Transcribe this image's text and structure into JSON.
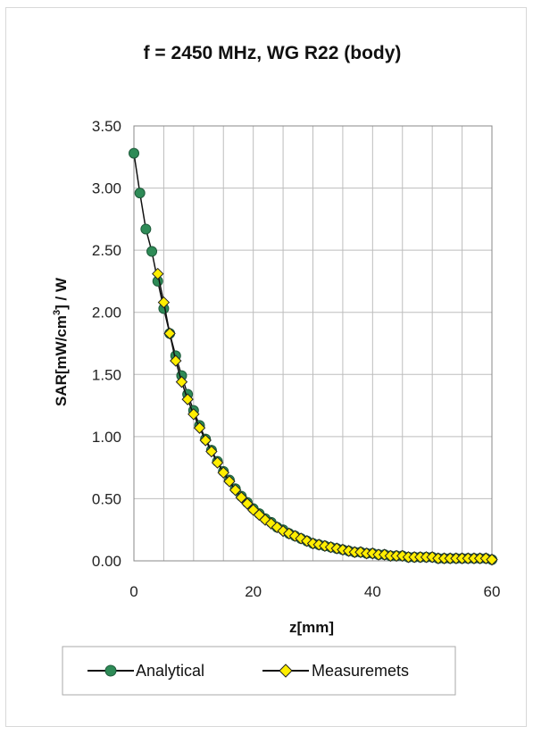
{
  "chart_data": {
    "type": "line",
    "title": "f = 2450 MHz, WG R22 (body)",
    "xlabel": "z[mm]",
    "ylabel_parts": [
      "SAR[mW/cm",
      "3",
      "] / W"
    ],
    "xlim": [
      0,
      60
    ],
    "ylim": [
      0,
      3.5
    ],
    "x_ticks": [
      0,
      20,
      40,
      60
    ],
    "y_ticks": [
      "0.00",
      "0.50",
      "1.00",
      "1.50",
      "2.00",
      "2.50",
      "3.00",
      "3.50"
    ],
    "grid": true,
    "legend_position": "bottom",
    "series": [
      {
        "name": "Analytical",
        "marker": "circle",
        "color": "#2e8b57",
        "x": [
          0,
          1,
          2,
          3,
          4,
          5,
          6,
          7,
          8,
          9,
          10,
          11,
          12,
          13,
          14,
          15,
          16,
          17,
          18,
          19,
          20,
          21,
          22,
          23,
          24,
          25,
          26,
          27,
          28,
          29,
          30,
          31,
          32,
          33,
          34,
          35,
          36,
          37,
          38,
          39,
          40,
          41,
          42,
          43,
          44,
          45,
          46,
          47,
          48,
          49,
          50,
          51,
          52,
          53,
          54,
          55,
          56,
          57,
          58,
          59,
          60
        ],
        "y": [
          3.28,
          2.96,
          2.67,
          2.49,
          2.25,
          2.03,
          1.83,
          1.65,
          1.49,
          1.34,
          1.21,
          1.09,
          0.98,
          0.89,
          0.8,
          0.72,
          0.65,
          0.58,
          0.52,
          0.47,
          0.42,
          0.38,
          0.34,
          0.31,
          0.27,
          0.25,
          0.22,
          0.2,
          0.18,
          0.16,
          0.14,
          0.13,
          0.12,
          0.11,
          0.1,
          0.09,
          0.08,
          0.07,
          0.07,
          0.06,
          0.06,
          0.05,
          0.05,
          0.04,
          0.04,
          0.04,
          0.03,
          0.03,
          0.03,
          0.03,
          0.03,
          0.02,
          0.02,
          0.02,
          0.02,
          0.02,
          0.02,
          0.02,
          0.02,
          0.02,
          0.01
        ]
      },
      {
        "name": "Measuremets",
        "marker": "diamond",
        "color": "#ffee00",
        "x": [
          4,
          5,
          6,
          7,
          8,
          9,
          10,
          11,
          12,
          13,
          14,
          15,
          16,
          17,
          18,
          19,
          20,
          21,
          22,
          23,
          24,
          25,
          26,
          27,
          28,
          29,
          30,
          31,
          32,
          33,
          34,
          35,
          36,
          37,
          38,
          39,
          40,
          41,
          42,
          43,
          44,
          45,
          46,
          47,
          48,
          49,
          50,
          51,
          52,
          53,
          54,
          55,
          56,
          57,
          58,
          59,
          60
        ],
        "y": [
          2.31,
          2.08,
          1.83,
          1.61,
          1.44,
          1.3,
          1.18,
          1.07,
          0.97,
          0.88,
          0.79,
          0.71,
          0.64,
          0.57,
          0.51,
          0.46,
          0.41,
          0.37,
          0.33,
          0.3,
          0.27,
          0.24,
          0.22,
          0.2,
          0.18,
          0.16,
          0.14,
          0.13,
          0.12,
          0.11,
          0.1,
          0.09,
          0.08,
          0.07,
          0.07,
          0.06,
          0.06,
          0.05,
          0.05,
          0.04,
          0.04,
          0.04,
          0.03,
          0.03,
          0.03,
          0.03,
          0.03,
          0.02,
          0.02,
          0.02,
          0.02,
          0.02,
          0.02,
          0.02,
          0.02,
          0.02,
          0.01
        ]
      }
    ]
  }
}
